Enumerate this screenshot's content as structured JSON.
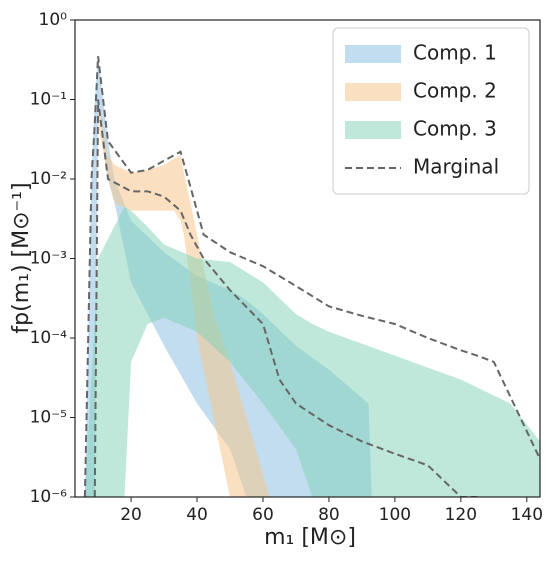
{
  "chart_data": {
    "type": "band",
    "x_label": "m₁ [M⊙]",
    "y_label": "fp(m₁) [M⊙⁻¹]",
    "xlim": [
      3,
      144
    ],
    "xticks": [
      20,
      40,
      60,
      80,
      100,
      120,
      140
    ],
    "ylim": [
      1e-06,
      1
    ],
    "ylog": true,
    "yticks": [
      {
        "value": 1e-06,
        "label": "10⁻⁶"
      },
      {
        "value": 1e-05,
        "label": "10⁻⁵"
      },
      {
        "value": 0.0001,
        "label": "10⁻⁴"
      },
      {
        "value": 0.001,
        "label": "10⁻³"
      },
      {
        "value": 0.01,
        "label": "10⁻²"
      },
      {
        "value": 0.1,
        "label": "10⁻¹"
      },
      {
        "value": 1,
        "label": "10⁰"
      }
    ],
    "legend": "upper-right",
    "series": [
      {
        "name": "Comp. 1",
        "color": "#8fc1e3",
        "opacity": 0.55,
        "style": "band",
        "x": [
          6,
          8,
          9,
          10,
          13,
          15,
          20,
          30,
          40,
          50,
          55,
          60,
          70,
          80,
          92,
          93
        ],
        "upper": [
          1e-06,
          0.01,
          0.1,
          0.35,
          0.03,
          0.01,
          0.003,
          0.0012,
          0.0006,
          0.0004,
          0.0003,
          0.0002,
          8e-05,
          4e-05,
          1.5e-05,
          1e-06
        ],
        "lower": [
          1e-06,
          1e-06,
          1e-06,
          0.1,
          0.01,
          0.005,
          0.0005,
          8e-05,
          1.5e-05,
          4e-06,
          1e-06,
          1e-06,
          1e-06,
          1e-06,
          1e-06,
          1e-06
        ]
      },
      {
        "name": "Comp. 2",
        "color": "#f5c78e",
        "opacity": 0.55,
        "style": "band",
        "x": [
          9,
          10,
          13,
          15,
          20,
          25,
          30,
          33,
          35,
          36,
          38,
          40,
          45,
          50,
          55,
          62
        ],
        "upper": [
          1e-06,
          0.1,
          0.02,
          0.015,
          0.012,
          0.013,
          0.015,
          0.018,
          0.02,
          0.012,
          0.005,
          0.002,
          0.0002,
          5e-05,
          1e-05,
          1e-06
        ],
        "lower": [
          1e-06,
          0.05,
          0.01,
          0.005,
          0.004,
          0.004,
          0.004,
          0.004,
          0.003,
          0.002,
          0.0005,
          0.0001,
          1e-05,
          1e-06,
          1e-06,
          1e-06
        ]
      },
      {
        "name": "Comp. 3",
        "color": "#7fd1b5",
        "opacity": 0.5,
        "style": "band",
        "x": [
          6,
          10,
          18,
          20,
          25,
          30,
          40,
          50,
          60,
          70,
          75,
          80,
          100,
          120,
          135,
          144
        ],
        "upper": [
          1e-06,
          0.001,
          0.0045,
          0.004,
          0.0025,
          0.0015,
          0.001,
          0.0009,
          0.0005,
          0.0002,
          0.00015,
          0.00012,
          6e-05,
          3e-05,
          1.5e-05,
          5e-06
        ],
        "lower": [
          1e-06,
          1e-06,
          1e-06,
          5e-05,
          0.00015,
          0.00018,
          0.00012,
          5e-05,
          1.5e-05,
          4e-06,
          1e-06,
          1e-06,
          1e-06,
          1e-06,
          1e-06,
          1e-06
        ]
      },
      {
        "name": "Marginal",
        "color": "#666666",
        "style": "dashed",
        "x": [
          6,
          8,
          9,
          10,
          13,
          20,
          25,
          30,
          35,
          38,
          42,
          50,
          60,
          65,
          70,
          80,
          90,
          100,
          110,
          120,
          125,
          130,
          144
        ],
        "upper": [
          1e-06,
          0.01,
          0.05,
          0.35,
          0.03,
          0.012,
          0.013,
          0.017,
          0.022,
          0.008,
          0.002,
          0.0012,
          0.0008,
          0.0006,
          0.00045,
          0.00025,
          0.00019,
          0.00015,
          0.0001,
          7e-05,
          6e-05,
          5e-05,
          3e-06
        ],
        "lower": [
          null,
          null,
          1e-06,
          0.1,
          0.01,
          0.007,
          0.007,
          0.006,
          0.004,
          0.002,
          0.001,
          0.0004,
          0.00015,
          3e-05,
          1.5e-05,
          8e-06,
          5e-06,
          3.5e-06,
          2.5e-06,
          1e-06,
          1e-06,
          null,
          null
        ]
      }
    ]
  }
}
